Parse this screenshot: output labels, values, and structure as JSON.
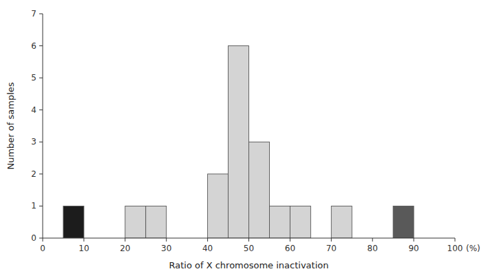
{
  "chart_data": {
    "type": "bar",
    "x": [
      7.5,
      22.5,
      27.5,
      42.5,
      47.5,
      52.5,
      57.5,
      62.5,
      72.5,
      87.5
    ],
    "values": [
      1,
      1,
      1,
      2,
      6,
      3,
      1,
      1,
      1,
      1
    ],
    "colors": [
      "#1c1c1c",
      "#d4d4d4",
      "#d4d4d4",
      "#d4d4d4",
      "#d4d4d4",
      "#d4d4d4",
      "#d4d4d4",
      "#d4d4d4",
      "#d4d4d4",
      "#595959"
    ],
    "xlim": [
      0,
      100
    ],
    "xticks": [
      0,
      10,
      20,
      30,
      40,
      50,
      60,
      70,
      80,
      90,
      100
    ],
    "ylim": [
      0,
      7
    ],
    "yticks": [
      0,
      1,
      2,
      3,
      4,
      5,
      6,
      7
    ],
    "xlabel": "Ratio of X chromosome inactivation",
    "ylabel": "Number of samples",
    "annotations": [
      "(%)"
    ],
    "grid": false
  }
}
